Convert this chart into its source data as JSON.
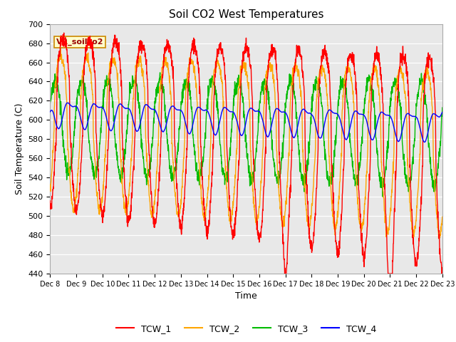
{
  "title": "Soil CO2 West Temperatures",
  "xlabel": "Time",
  "ylabel": "Soil Temperature (C)",
  "ylim": [
    440,
    700
  ],
  "yticks": [
    440,
    460,
    480,
    500,
    520,
    540,
    560,
    580,
    600,
    620,
    640,
    660,
    680,
    700
  ],
  "annotation": "VR_soilco2",
  "fig_bg": "#ffffff",
  "plot_bg": "#e8e8e8",
  "grid_color": "#ffffff",
  "series_colors": {
    "TCW_1": "#ff0000",
    "TCW_2": "#ffa500",
    "TCW_3": "#00bb00",
    "TCW_4": "#0000ff"
  },
  "legend_entries": [
    "TCW_1",
    "TCW_2",
    "TCW_3",
    "TCW_4"
  ],
  "xtick_labels": [
    "Dec 8",
    "Dec 9",
    "Dec 10",
    "Dec 11",
    "Dec 12",
    "Dec 13",
    "Dec 14",
    "Dec 15",
    "Dec 16",
    "Dec 17",
    "Dec 18",
    "Dec 19",
    "Dec 20",
    "Dec 21",
    "Dec 22",
    "Dec 23"
  ],
  "n_days": 15,
  "pts_per_day": 120
}
